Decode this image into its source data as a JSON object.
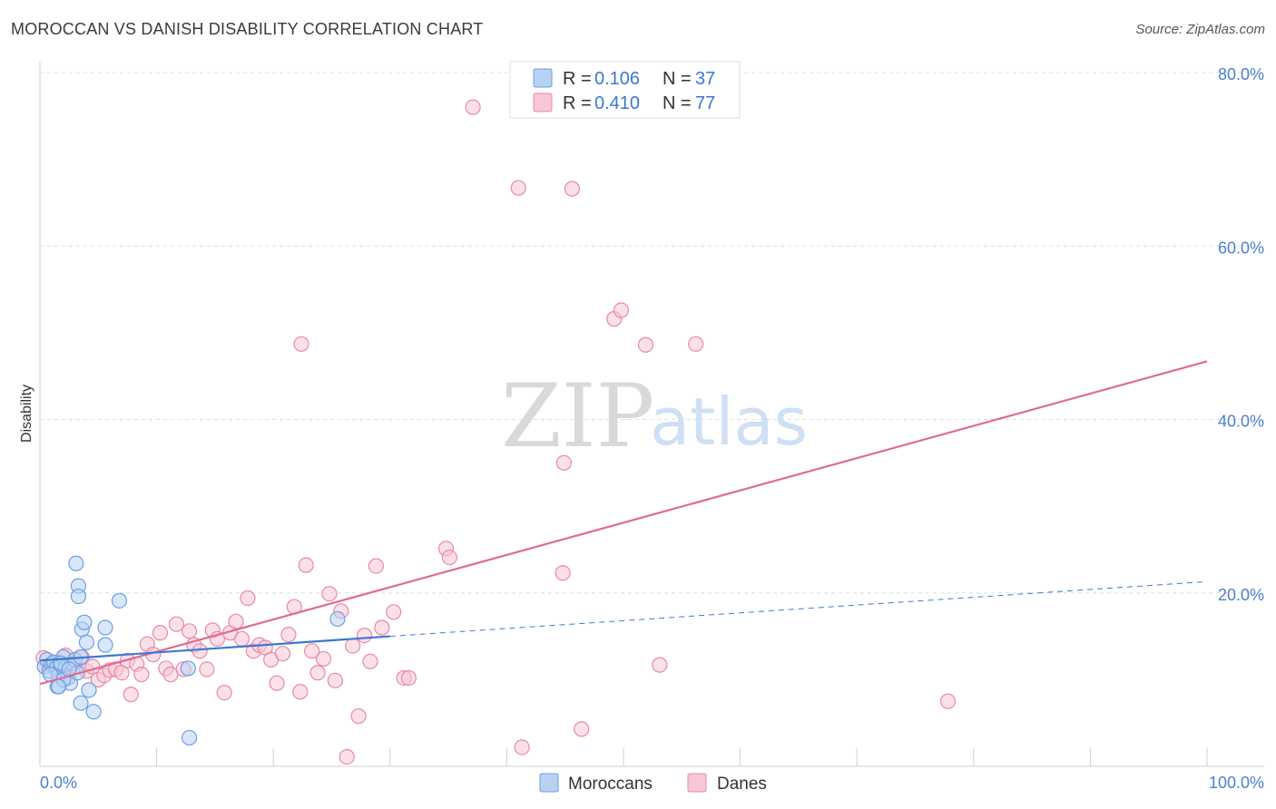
{
  "header": {
    "title": "MOROCCAN VS DANISH DISABILITY CORRELATION CHART",
    "source": "Source: ZipAtlas.com"
  },
  "watermark": {
    "zip": "ZIP",
    "atlas": "atlas"
  },
  "legend": {
    "rows": [
      {
        "r_label": "R =",
        "r_value": "0.106",
        "n_label": "N =",
        "n_value": "37"
      },
      {
        "r_label": "R =",
        "r_value": "0.410",
        "n_label": "N =",
        "n_value": "77"
      }
    ]
  },
  "bottom_legend": {
    "moroccans": "Moroccans",
    "danes": "Danes"
  },
  "chart_data": {
    "type": "scatter",
    "title": "MOROCCAN VS DANISH DISABILITY CORRELATION CHART",
    "xlabel": "",
    "ylabel": "Disability",
    "xlim": [
      0,
      100
    ],
    "ylim": [
      0,
      80
    ],
    "x_tick_labels": [
      "0.0%",
      "100.0%"
    ],
    "y_ticks": [
      20,
      40,
      60,
      80
    ],
    "y_tick_labels": [
      "20.0%",
      "40.0%",
      "60.0%",
      "80.0%"
    ],
    "grid": true,
    "legend_position": "top-center",
    "colors": {
      "moroccans_fill": "#b8d2f4",
      "moroccans_stroke": "#6e9fe0",
      "moroccans_line": "#3a78d4",
      "danes_fill": "#f8c6d6",
      "danes_stroke": "#e889a8",
      "danes_line": "#e06b94"
    },
    "series": [
      {
        "name": "Moroccans",
        "r": 0.106,
        "n": 37,
        "trend": {
          "x0": 0,
          "y0": 12.2,
          "x1": 30,
          "y1": 15.0,
          "dash_to_x": 100,
          "dash_to_y": 21.3
        },
        "points": [
          [
            0.4,
            11.5
          ],
          [
            0.6,
            12.3
          ],
          [
            0.8,
            11.0
          ],
          [
            1.0,
            11.8
          ],
          [
            1.2,
            12.0
          ],
          [
            1.4,
            11.3
          ],
          [
            1.6,
            10.5
          ],
          [
            1.8,
            11.7
          ],
          [
            2.0,
            12.6
          ],
          [
            2.2,
            11.4
          ],
          [
            2.4,
            10.2
          ],
          [
            2.6,
            9.6
          ],
          [
            2.8,
            11.9
          ],
          [
            3.0,
            12.3
          ],
          [
            3.2,
            10.8
          ],
          [
            1.5,
            9.2
          ],
          [
            0.9,
            10.6
          ],
          [
            2.0,
            10.0
          ],
          [
            3.5,
            12.6
          ],
          [
            3.1,
            23.4
          ],
          [
            3.3,
            20.8
          ],
          [
            3.3,
            19.6
          ],
          [
            3.6,
            15.8
          ],
          [
            3.8,
            16.6
          ],
          [
            4.0,
            14.3
          ],
          [
            5.6,
            14.0
          ],
          [
            5.6,
            16.0
          ],
          [
            6.8,
            19.1
          ],
          [
            4.2,
            8.8
          ],
          [
            3.5,
            7.3
          ],
          [
            4.6,
            6.3
          ],
          [
            1.6,
            9.2
          ],
          [
            12.7,
            11.3
          ],
          [
            12.8,
            3.3
          ],
          [
            25.5,
            17.0
          ],
          [
            1.8,
            11.9
          ],
          [
            2.5,
            11.2
          ]
        ]
      },
      {
        "name": "Danes",
        "r": 0.41,
        "n": 77,
        "trend": {
          "x0": 0,
          "y0": 9.5,
          "x1": 100,
          "y1": 46.7
        },
        "points": [
          [
            0.3,
            12.5
          ],
          [
            0.8,
            11.6
          ],
          [
            1.5,
            12.0
          ],
          [
            2.2,
            12.8
          ],
          [
            3.0,
            11.5
          ],
          [
            3.6,
            12.6
          ],
          [
            4.0,
            11.0
          ],
          [
            4.5,
            11.5
          ],
          [
            5.0,
            10.0
          ],
          [
            5.5,
            10.5
          ],
          [
            6.0,
            11.1
          ],
          [
            6.5,
            11.2
          ],
          [
            7.0,
            10.8
          ],
          [
            7.5,
            12.2
          ],
          [
            7.8,
            8.3
          ],
          [
            8.3,
            11.8
          ],
          [
            8.7,
            10.6
          ],
          [
            9.2,
            14.1
          ],
          [
            9.7,
            12.9
          ],
          [
            10.3,
            15.4
          ],
          [
            10.8,
            11.3
          ],
          [
            11.2,
            10.6
          ],
          [
            11.7,
            16.4
          ],
          [
            12.3,
            11.2
          ],
          [
            12.8,
            15.6
          ],
          [
            13.2,
            14.0
          ],
          [
            13.7,
            13.3
          ],
          [
            14.3,
            11.2
          ],
          [
            14.8,
            15.7
          ],
          [
            15.2,
            14.7
          ],
          [
            15.8,
            8.5
          ],
          [
            16.3,
            15.4
          ],
          [
            16.8,
            16.7
          ],
          [
            17.3,
            14.7
          ],
          [
            17.8,
            19.4
          ],
          [
            18.3,
            13.3
          ],
          [
            18.8,
            14.0
          ],
          [
            19.3,
            13.7
          ],
          [
            19.8,
            12.3
          ],
          [
            20.3,
            9.6
          ],
          [
            20.8,
            13.0
          ],
          [
            21.3,
            15.2
          ],
          [
            21.8,
            18.4
          ],
          [
            22.3,
            8.6
          ],
          [
            22.8,
            23.2
          ],
          [
            23.3,
            13.3
          ],
          [
            23.8,
            10.8
          ],
          [
            24.3,
            12.4
          ],
          [
            24.8,
            19.9
          ],
          [
            25.3,
            9.9
          ],
          [
            25.8,
            17.9
          ],
          [
            26.3,
            1.1
          ],
          [
            26.8,
            13.9
          ],
          [
            27.3,
            5.8
          ],
          [
            27.8,
            15.1
          ],
          [
            28.3,
            12.1
          ],
          [
            28.8,
            23.1
          ],
          [
            29.3,
            16.0
          ],
          [
            30.3,
            17.8
          ],
          [
            31.2,
            10.2
          ],
          [
            31.6,
            10.2
          ],
          [
            34.8,
            25.1
          ],
          [
            35.1,
            24.1
          ],
          [
            37.1,
            76.0
          ],
          [
            41.0,
            66.7
          ],
          [
            41.3,
            2.2
          ],
          [
            44.8,
            22.3
          ],
          [
            44.9,
            35.0
          ],
          [
            45.6,
            66.6
          ],
          [
            46.4,
            4.3
          ],
          [
            49.2,
            51.6
          ],
          [
            49.8,
            52.6
          ],
          [
            51.9,
            48.6
          ],
          [
            53.1,
            11.7
          ],
          [
            56.2,
            48.7
          ],
          [
            77.8,
            7.5
          ],
          [
            22.4,
            48.7
          ]
        ]
      }
    ]
  }
}
